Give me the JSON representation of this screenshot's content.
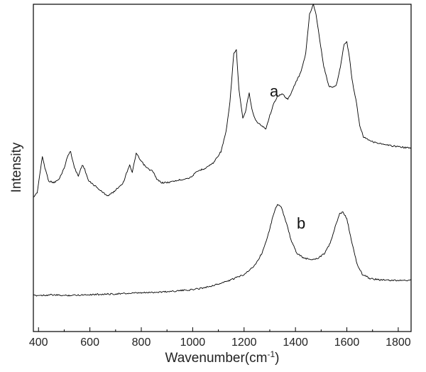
{
  "chart_data": {
    "type": "line",
    "title": "",
    "xlabel": "Wavenumber(cm",
    "xlabel_sup": "-1",
    "xlabel_close": ")",
    "ylabel": "Intensity",
    "xlim": [
      380,
      1850
    ],
    "ylim": [
      0,
      100
    ],
    "grid": false,
    "legend": "none",
    "x_ticks": [
      400,
      600,
      800,
      1000,
      1200,
      1400,
      1600,
      1800
    ],
    "y_ticks_shown": false,
    "line_color": "#000000",
    "series": [
      {
        "name": "a",
        "points": [
          [
            380,
            41
          ],
          [
            395,
            42.5
          ],
          [
            405,
            48
          ],
          [
            415,
            53.5
          ],
          [
            425,
            50
          ],
          [
            440,
            46
          ],
          [
            460,
            45.5
          ],
          [
            480,
            46.5
          ],
          [
            500,
            50
          ],
          [
            515,
            54
          ],
          [
            525,
            55
          ],
          [
            540,
            50
          ],
          [
            555,
            47.5
          ],
          [
            570,
            51
          ],
          [
            580,
            49.5
          ],
          [
            595,
            46
          ],
          [
            620,
            44.5
          ],
          [
            650,
            42.5
          ],
          [
            670,
            41.5
          ],
          [
            690,
            42.5
          ],
          [
            710,
            44
          ],
          [
            730,
            45.5
          ],
          [
            745,
            49
          ],
          [
            755,
            51
          ],
          [
            765,
            48.5
          ],
          [
            780,
            54.5
          ],
          [
            795,
            52.5
          ],
          [
            815,
            50.5
          ],
          [
            830,
            49.5
          ],
          [
            845,
            49
          ],
          [
            860,
            46.5
          ],
          [
            880,
            45.5
          ],
          [
            900,
            45.5
          ],
          [
            930,
            46
          ],
          [
            960,
            46.5
          ],
          [
            990,
            47
          ],
          [
            1020,
            49
          ],
          [
            1050,
            50
          ],
          [
            1080,
            51.5
          ],
          [
            1110,
            55
          ],
          [
            1130,
            61
          ],
          [
            1145,
            70
          ],
          [
            1160,
            85
          ],
          [
            1170,
            86
          ],
          [
            1180,
            74
          ],
          [
            1195,
            65
          ],
          [
            1205,
            67
          ],
          [
            1220,
            73
          ],
          [
            1230,
            68
          ],
          [
            1245,
            64.5
          ],
          [
            1265,
            63
          ],
          [
            1285,
            62
          ],
          [
            1300,
            66
          ],
          [
            1315,
            69.5
          ],
          [
            1330,
            72
          ],
          [
            1350,
            72.5
          ],
          [
            1370,
            71
          ],
          [
            1385,
            73
          ],
          [
            1400,
            76
          ],
          [
            1420,
            79
          ],
          [
            1440,
            85
          ],
          [
            1455,
            97
          ],
          [
            1470,
            100
          ],
          [
            1480,
            97
          ],
          [
            1495,
            89
          ],
          [
            1510,
            81
          ],
          [
            1530,
            75
          ],
          [
            1545,
            74.5
          ],
          [
            1560,
            75.5
          ],
          [
            1575,
            81
          ],
          [
            1590,
            88
          ],
          [
            1600,
            88.5
          ],
          [
            1610,
            84
          ],
          [
            1620,
            77
          ],
          [
            1635,
            71
          ],
          [
            1650,
            63
          ],
          [
            1665,
            59.5
          ],
          [
            1700,
            58
          ],
          [
            1750,
            57
          ],
          [
            1800,
            56.5
          ],
          [
            1850,
            56
          ]
        ]
      },
      {
        "name": "b",
        "points": [
          [
            380,
            11
          ],
          [
            450,
            11.2
          ],
          [
            500,
            11
          ],
          [
            600,
            11.3
          ],
          [
            700,
            11.5
          ],
          [
            800,
            11.8
          ],
          [
            900,
            12.2
          ],
          [
            1000,
            12.8
          ],
          [
            1050,
            13.5
          ],
          [
            1100,
            14.5
          ],
          [
            1150,
            15.8
          ],
          [
            1200,
            17.5
          ],
          [
            1240,
            20
          ],
          [
            1270,
            24
          ],
          [
            1295,
            30
          ],
          [
            1315,
            36
          ],
          [
            1330,
            39
          ],
          [
            1345,
            38
          ],
          [
            1365,
            33
          ],
          [
            1385,
            27.5
          ],
          [
            1405,
            24
          ],
          [
            1430,
            22.5
          ],
          [
            1460,
            22
          ],
          [
            1490,
            22.5
          ],
          [
            1515,
            24
          ],
          [
            1535,
            27
          ],
          [
            1555,
            32
          ],
          [
            1572,
            36
          ],
          [
            1585,
            36.5
          ],
          [
            1600,
            34.5
          ],
          [
            1620,
            27
          ],
          [
            1640,
            20.5
          ],
          [
            1660,
            17.5
          ],
          [
            1690,
            16.2
          ],
          [
            1730,
            15.8
          ],
          [
            1780,
            15.6
          ],
          [
            1850,
            15.7
          ]
        ]
      }
    ]
  }
}
